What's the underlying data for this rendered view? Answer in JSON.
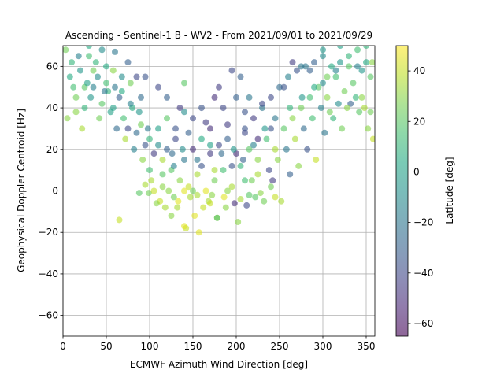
{
  "chart_data": {
    "type": "scatter",
    "title": "Ascending - Sentinel-1 B - WV2 - From 2021/09/01 to 2021/09/29",
    "xlabel": "ECMWF Azimuth Wind Direction [deg]",
    "ylabel": "Geophysical Doppler Centroid [Hz]",
    "xlim": [
      0,
      360
    ],
    "ylim": [
      -70,
      70
    ],
    "xticks": [
      0,
      50,
      100,
      150,
      200,
      250,
      300,
      350
    ],
    "yticks": [
      -60,
      -40,
      -20,
      0,
      20,
      40,
      60
    ],
    "grid": true,
    "colorbar": {
      "label": "Latitude [deg]",
      "range": [
        -65,
        50
      ],
      "ticks": [
        -60,
        -40,
        -20,
        0,
        20,
        40
      ],
      "colormap": "viridis"
    },
    "series": [
      {
        "points": [
          [
            10,
            62,
            10
          ],
          [
            20,
            58,
            -5
          ],
          [
            30,
            65,
            15
          ],
          [
            40,
            55,
            -10
          ],
          [
            50,
            60,
            5
          ],
          [
            60,
            50,
            -20
          ],
          [
            15,
            45,
            25
          ],
          [
            25,
            40,
            10
          ],
          [
            35,
            50,
            -15
          ],
          [
            45,
            42,
            20
          ],
          [
            55,
            38,
            0
          ],
          [
            65,
            45,
            -30
          ],
          [
            70,
            35,
            15
          ],
          [
            75,
            30,
            -40
          ],
          [
            80,
            40,
            5
          ],
          [
            85,
            28,
            -25
          ],
          [
            90,
            32,
            25
          ],
          [
            95,
            22,
            -35
          ],
          [
            100,
            25,
            10
          ],
          [
            105,
            18,
            -45
          ],
          [
            110,
            30,
            0
          ],
          [
            115,
            15,
            35
          ],
          [
            120,
            20,
            -30
          ],
          [
            125,
            10,
            20
          ],
          [
            130,
            25,
            -40
          ],
          [
            135,
            5,
            30
          ],
          [
            140,
            15,
            -20
          ],
          [
            145,
            2,
            40
          ],
          [
            150,
            20,
            -50
          ],
          [
            155,
            8,
            35
          ],
          [
            160,
            12,
            -35
          ],
          [
            165,
            0,
            45
          ],
          [
            170,
            18,
            -45
          ],
          [
            175,
            5,
            25
          ],
          [
            180,
            22,
            -40
          ],
          [
            185,
            10,
            15
          ],
          [
            190,
            25,
            -30
          ],
          [
            195,
            2,
            35
          ],
          [
            200,
            18,
            -50
          ],
          [
            205,
            12,
            10
          ],
          [
            210,
            30,
            -35
          ],
          [
            215,
            20,
            20
          ],
          [
            220,
            35,
            -45
          ],
          [
            225,
            15,
            30
          ],
          [
            230,
            40,
            -20
          ],
          [
            235,
            25,
            15
          ],
          [
            240,
            45,
            -40
          ],
          [
            245,
            20,
            35
          ],
          [
            250,
            50,
            -25
          ],
          [
            255,
            30,
            20
          ],
          [
            260,
            55,
            -15
          ],
          [
            265,
            35,
            30
          ],
          [
            270,
            58,
            -35
          ],
          [
            275,
            40,
            25
          ],
          [
            280,
            60,
            -20
          ],
          [
            285,
            45,
            15
          ],
          [
            290,
            62,
            -30
          ],
          [
            295,
            50,
            20
          ],
          [
            300,
            65,
            -10
          ],
          [
            305,
            45,
            30
          ],
          [
            310,
            60,
            5
          ],
          [
            315,
            55,
            15
          ],
          [
            320,
            62,
            -5
          ],
          [
            325,
            48,
            25
          ],
          [
            330,
            65,
            10
          ],
          [
            335,
            52,
            20
          ],
          [
            340,
            60,
            -15
          ],
          [
            345,
            45,
            30
          ],
          [
            350,
            62,
            5
          ],
          [
            355,
            55,
            20
          ],
          [
            5,
            35,
            30
          ],
          [
            12,
            50,
            15
          ],
          [
            22,
            30,
            35
          ],
          [
            32,
            45,
            -5
          ],
          [
            42,
            35,
            25
          ],
          [
            52,
            48,
            10
          ],
          [
            62,
            30,
            -25
          ],
          [
            72,
            25,
            35
          ],
          [
            82,
            20,
            -15
          ],
          [
            92,
            15,
            30
          ],
          [
            102,
            5,
            35
          ],
          [
            112,
            -5,
            40
          ],
          [
            122,
            0,
            30
          ],
          [
            132,
            -8,
            35
          ],
          [
            142,
            -18,
            40
          ],
          [
            152,
            -12,
            45
          ],
          [
            157,
            -20,
            45
          ],
          [
            168,
            -5,
            35
          ],
          [
            178,
            -13,
            40
          ],
          [
            188,
            -8,
            30
          ],
          [
            198,
            -6,
            -50
          ],
          [
            202,
            -15,
            30
          ],
          [
            212,
            -7,
            -40
          ],
          [
            222,
            -3,
            20
          ],
          [
            232,
            -5,
            25
          ],
          [
            242,
            5,
            -45
          ],
          [
            252,
            -5,
            35
          ],
          [
            262,
            8,
            -30
          ],
          [
            272,
            12,
            30
          ],
          [
            282,
            20,
            -35
          ],
          [
            292,
            15,
            40
          ],
          [
            302,
            28,
            -20
          ],
          [
            312,
            35,
            10
          ],
          [
            322,
            30,
            25
          ],
          [
            332,
            42,
            -30
          ],
          [
            342,
            38,
            20
          ],
          [
            352,
            30,
            30
          ],
          [
            358,
            25,
            40
          ],
          [
            65,
            -14,
            40
          ],
          [
            178,
            -13,
            15
          ],
          [
            140,
            -17,
            45
          ],
          [
            99,
            -1,
            25
          ],
          [
            88,
            -1,
            20
          ],
          [
            108,
            -6,
            30
          ],
          [
            140,
            38,
            -10
          ],
          [
            160,
            40,
            -35
          ],
          [
            180,
            50,
            -45
          ],
          [
            195,
            58,
            -40
          ],
          [
            205,
            55,
            -30
          ],
          [
            175,
            45,
            -50
          ],
          [
            165,
            33,
            -45
          ],
          [
            210,
            38,
            -35
          ],
          [
            230,
            42,
            -40
          ],
          [
            255,
            50,
            -35
          ],
          [
            265,
            62,
            -45
          ],
          [
            275,
            60,
            -20
          ],
          [
            285,
            58,
            -30
          ],
          [
            300,
            52,
            -10
          ],
          [
            120,
            45,
            -30
          ],
          [
            110,
            50,
            -40
          ],
          [
            95,
            55,
            -35
          ],
          [
            140,
            52,
            20
          ],
          [
            90,
            45,
            -25
          ],
          [
            85,
            55,
            -40
          ],
          [
            75,
            62,
            -30
          ],
          [
            60,
            67,
            -20
          ],
          [
            45,
            68,
            -10
          ],
          [
            30,
            70,
            5
          ],
          [
            300,
            68,
            -5
          ],
          [
            320,
            70,
            0
          ],
          [
            340,
            68,
            15
          ],
          [
            350,
            70,
            10
          ],
          [
            130,
            30,
            -35
          ],
          [
            150,
            35,
            -40
          ],
          [
            170,
            30,
            -50
          ],
          [
            190,
            32,
            -45
          ],
          [
            210,
            28,
            -40
          ],
          [
            225,
            25,
            -50
          ],
          [
            240,
            30,
            -35
          ],
          [
            120,
            35,
            20
          ],
          [
            135,
            40,
            -45
          ],
          [
            200,
            45,
            -30
          ],
          [
            185,
            40,
            -40
          ],
          [
            215,
            45,
            -20
          ],
          [
            160,
            25,
            5
          ],
          [
            145,
            28,
            -30
          ],
          [
            100,
            10,
            15
          ],
          [
            115,
            8,
            20
          ],
          [
            128,
            12,
            -15
          ],
          [
            150,
            0,
            25
          ],
          [
            175,
            10,
            35
          ],
          [
            195,
            12,
            -35
          ],
          [
            218,
            5,
            25
          ],
          [
            238,
            10,
            -40
          ],
          [
            248,
            15,
            30
          ],
          [
            258,
            20,
            -20
          ],
          [
            268,
            25,
            35
          ],
          [
            278,
            30,
            -25
          ],
          [
            288,
            35,
            15
          ],
          [
            298,
            40,
            -15
          ],
          [
            308,
            38,
            25
          ],
          [
            318,
            42,
            -10
          ],
          [
            328,
            40,
            30
          ],
          [
            338,
            45,
            10
          ],
          [
            348,
            40,
            35
          ],
          [
            355,
            38,
            25
          ],
          [
            15,
            38,
            30
          ],
          [
            25,
            50,
            20
          ],
          [
            35,
            58,
            25
          ],
          [
            50,
            52,
            15
          ],
          [
            58,
            40,
            0
          ],
          [
            68,
            48,
            5
          ],
          [
            78,
            42,
            -15
          ],
          [
            88,
            38,
            -5
          ],
          [
            98,
            30,
            -20
          ],
          [
            110,
            22,
            -10
          ],
          [
            126,
            18,
            -25
          ],
          [
            138,
            20,
            -10
          ],
          [
            155,
            15,
            -20
          ],
          [
            170,
            22,
            0
          ],
          [
            183,
            18,
            -25
          ],
          [
            197,
            20,
            -5
          ],
          [
            208,
            15,
            -30
          ],
          [
            220,
            22,
            -15
          ],
          [
            233,
            30,
            -5
          ],
          [
            245,
            35,
            -20
          ],
          [
            262,
            40,
            10
          ],
          [
            276,
            45,
            -5
          ],
          [
            290,
            50,
            5
          ],
          [
            305,
            55,
            25
          ],
          [
            315,
            58,
            -15
          ],
          [
            330,
            60,
            20
          ],
          [
            345,
            58,
            -5
          ],
          [
            357,
            62,
            30
          ],
          [
            3,
            68,
            25
          ],
          [
            8,
            55,
            5
          ],
          [
            18,
            65,
            -15
          ],
          [
            28,
            52,
            0
          ],
          [
            38,
            62,
            10
          ],
          [
            48,
            48,
            -20
          ],
          [
            58,
            58,
            30
          ],
          [
            68,
            55,
            -10
          ],
          [
            78,
            52,
            25
          ],
          [
            118,
            -8,
            35
          ],
          [
            125,
            -12,
            30
          ],
          [
            133,
            -5,
            45
          ],
          [
            147,
            -3,
            35
          ],
          [
            162,
            -8,
            40
          ],
          [
            172,
            -2,
            30
          ],
          [
            186,
            -3,
            45
          ],
          [
            205,
            -4,
            35
          ],
          [
            215,
            -2,
            20
          ],
          [
            228,
            -1,
            30
          ],
          [
            245,
            -3,
            40
          ],
          [
            240,
            2,
            25
          ],
          [
            225,
            8,
            35
          ],
          [
            210,
            5,
            15
          ],
          [
            190,
            0,
            30
          ],
          [
            170,
            -6,
            40
          ],
          [
            155,
            -2,
            35
          ],
          [
            140,
            0,
            45
          ],
          [
            128,
            -3,
            25
          ],
          [
            115,
            2,
            30
          ],
          [
            105,
            0,
            40
          ],
          [
            95,
            3,
            35
          ]
        ]
      }
    ]
  }
}
